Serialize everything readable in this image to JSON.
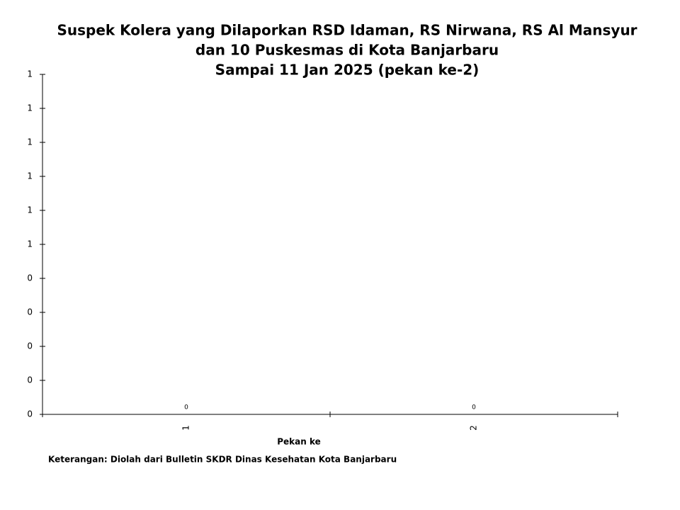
{
  "chart_data": {
    "type": "bar",
    "title": [
      "Suspek Kolera yang Dilaporkan RSD Idaman, RS Nirwana, RS Al Mansyur",
      "dan 10 Puskesmas di Kota Banjarbaru",
      "Sampai 11 Jan 2025 (pekan ke-2)"
    ],
    "x_label": "Pekan ke",
    "note": "Keterangan: Diolah dari Bulletin SKDR Dinas Kesehatan Kota Banjarbaru",
    "categories": [
      "1",
      "2"
    ],
    "values": [
      0,
      0
    ],
    "color": "#4472c4",
    "ylim": [
      0,
      1
    ],
    "yticks": [
      0,
      {
        "value": 0.1,
        "label": "0"
      },
      {
        "value": 0.2,
        "label": "0"
      },
      {
        "value": 0.3,
        "label": "0"
      },
      {
        "value": 0.4,
        "label": "0"
      },
      {
        "value": 0.5,
        "label": "1"
      },
      {
        "value": 0.6,
        "label": "1"
      },
      {
        "value": 0.7,
        "label": "1"
      },
      {
        "value": 0.8,
        "label": "1"
      },
      {
        "value": 0.9,
        "label": "1"
      },
      1
    ]
  }
}
